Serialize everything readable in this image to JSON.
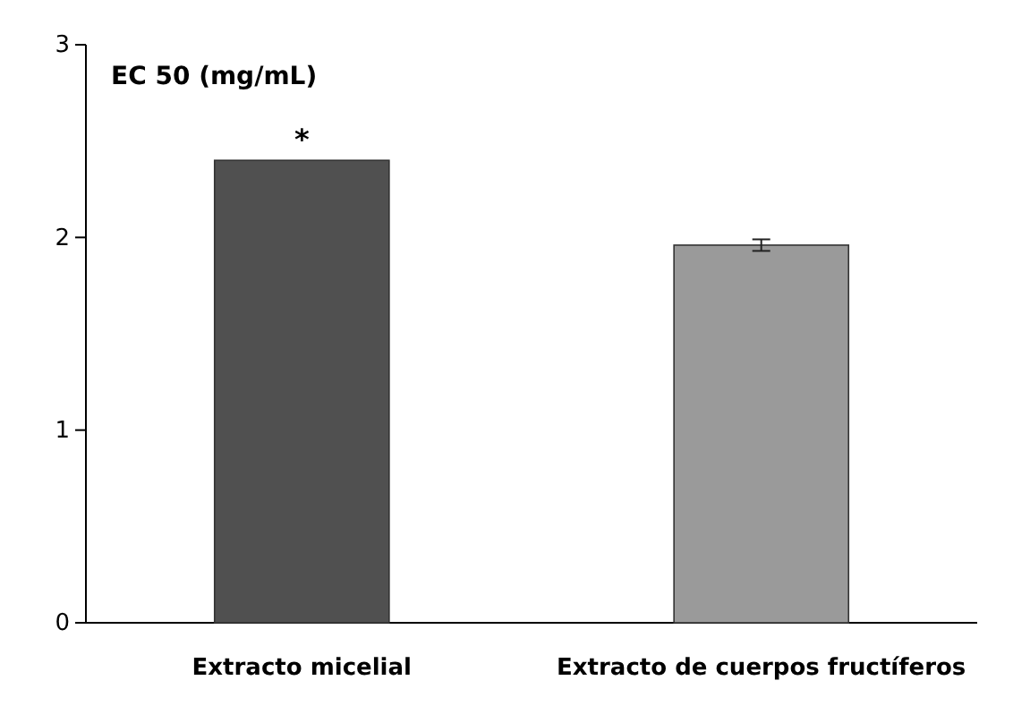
{
  "chart_data": {
    "type": "bar",
    "title": "EC 50 (mg/mL)",
    "categories": [
      "Extracto micelial",
      "Extracto de cuerpos fructíferos"
    ],
    "values": [
      2.4,
      1.96
    ],
    "colors": [
      "#505050",
      "#9a9a9a"
    ],
    "errors": [
      null,
      0.03
    ],
    "ylim": [
      0,
      3
    ],
    "yticks": [
      0,
      1,
      2,
      3
    ],
    "annotations": [
      {
        "text": "*",
        "x": "Extracto micelial",
        "y": 2.4
      }
    ]
  }
}
